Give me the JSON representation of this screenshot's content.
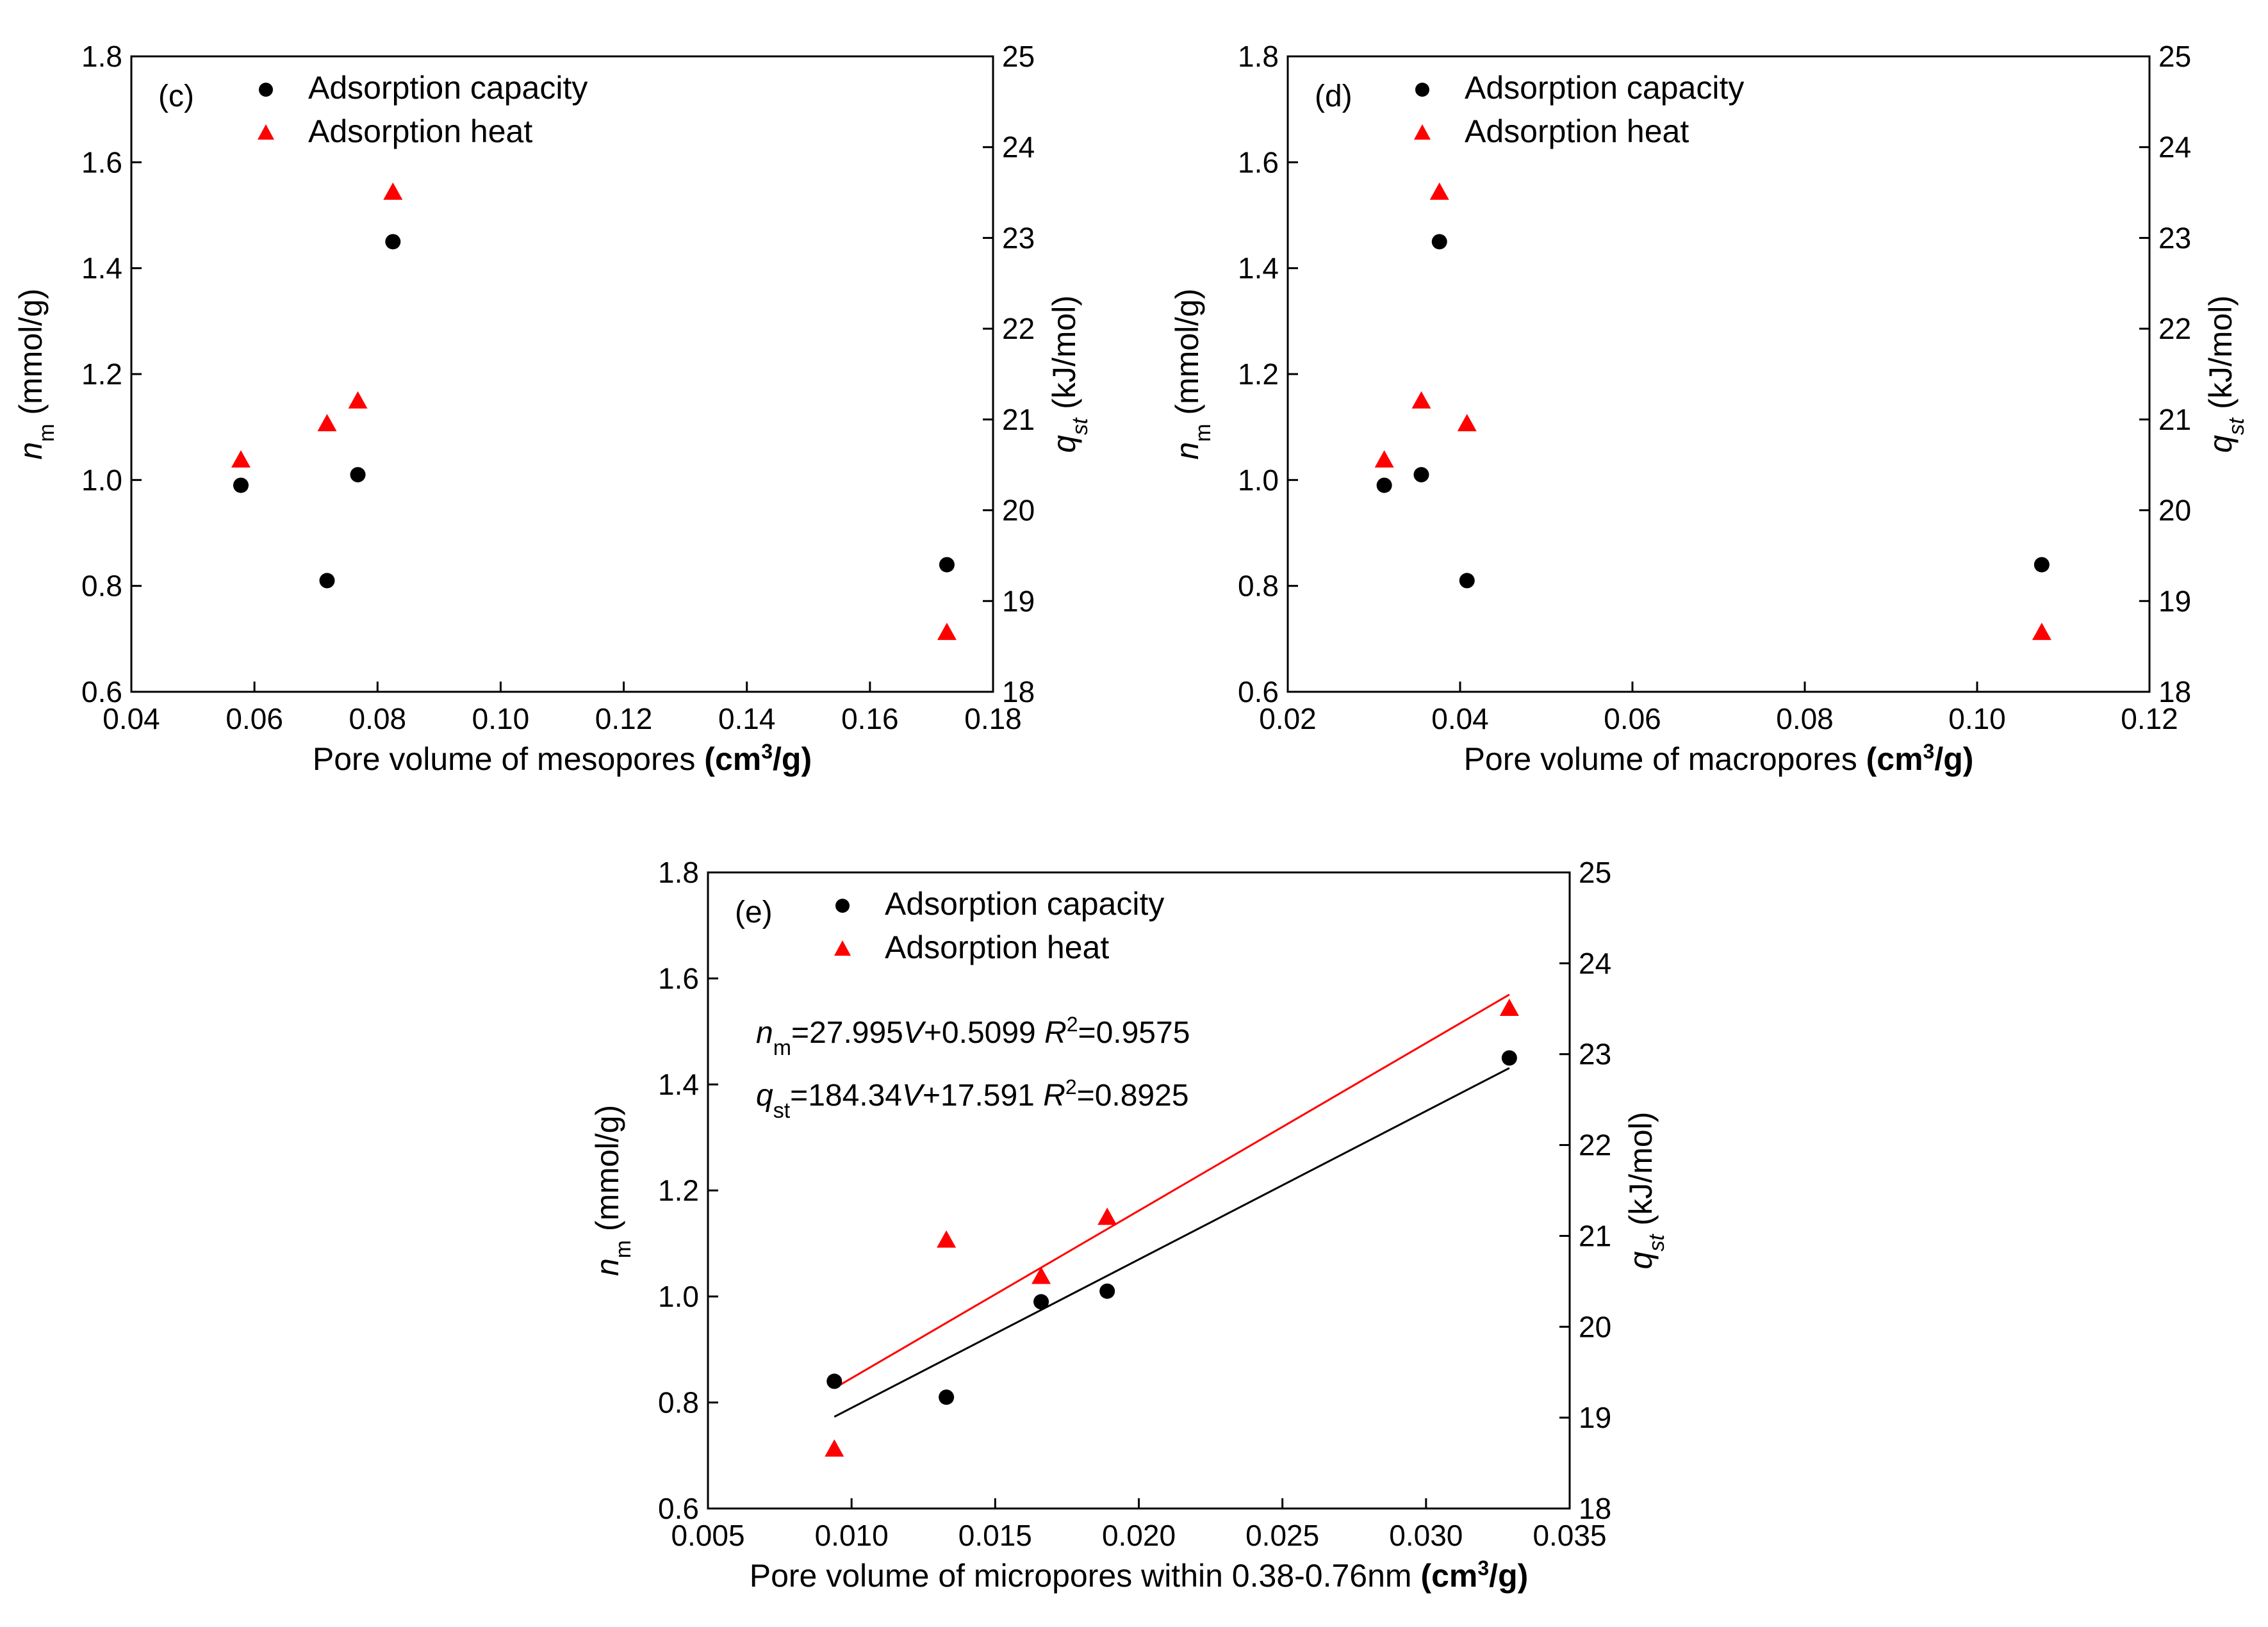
{
  "chart_data": [
    {
      "type": "scatter",
      "panel_label": "(c)",
      "xlabel": "Pore volume of mesopores",
      "xlabel_unit": {
        "pre": "(cm",
        "sup": "3",
        "post": "/g)"
      },
      "ylabel_left": {
        "main": "n",
        "sub": "m",
        "rest": " (mmol/g)"
      },
      "ylabel_right": {
        "main": "q",
        "sub": "st",
        "rest": " (kJ/mol)"
      },
      "xlim": [
        0.04,
        0.18
      ],
      "xticks": [
        0.04,
        0.06,
        0.08,
        0.1,
        0.12,
        0.14,
        0.16,
        0.18
      ],
      "xtick_labels": [
        "0.04",
        "0.06",
        "0.08",
        "0.10",
        "0.12",
        "0.14",
        "0.16",
        "0.18"
      ],
      "ylim_left": [
        0.6,
        1.8
      ],
      "yticks_left": [
        0.6,
        0.8,
        1.0,
        1.2,
        1.4,
        1.6,
        1.8
      ],
      "ytick_labels_left": [
        "0.6",
        "0.8",
        "1.0",
        "1.2",
        "1.4",
        "1.6",
        "1.8"
      ],
      "ylim_right": [
        18,
        25
      ],
      "yticks_right": [
        18,
        19,
        20,
        21,
        22,
        23,
        24,
        25
      ],
      "ytick_labels_right": [
        "18",
        "19",
        "20",
        "21",
        "22",
        "23",
        "24",
        "25"
      ],
      "legend": [
        "Adsorption capacity",
        "Adsorption heat"
      ],
      "series": [
        {
          "name": "Adsorption capacity",
          "axis": "left",
          "marker": "circle",
          "color": "#000000",
          "x": [
            0.0578,
            0.0718,
            0.0768,
            0.0825,
            0.1725
          ],
          "y": [
            0.99,
            0.81,
            1.01,
            1.45,
            0.84
          ]
        },
        {
          "name": "Adsorption heat",
          "axis": "right",
          "marker": "triangle",
          "color": "#ff0000",
          "x": [
            0.0578,
            0.0718,
            0.0768,
            0.0825,
            0.1725
          ],
          "y": [
            20.55,
            20.95,
            21.2,
            23.5,
            18.65
          ]
        }
      ]
    },
    {
      "type": "scatter",
      "panel_label": "(d)",
      "xlabel": "Pore volume of macropores",
      "xlabel_unit": {
        "pre": "(cm",
        "sup": "3",
        "post": "/g)"
      },
      "ylabel_left": {
        "main": "n",
        "sub": "m",
        "rest": " (mmol/g)"
      },
      "ylabel_right": {
        "main": "q",
        "sub": "st",
        "rest": " (kJ/mol)"
      },
      "xlim": [
        0.02,
        0.12
      ],
      "xticks": [
        0.02,
        0.04,
        0.06,
        0.08,
        0.1,
        0.12
      ],
      "xtick_labels": [
        "0.02",
        "0.04",
        "0.06",
        "0.08",
        "0.10",
        "0.12"
      ],
      "ylim_left": [
        0.6,
        1.8
      ],
      "yticks_left": [
        0.6,
        0.8,
        1.0,
        1.2,
        1.4,
        1.6,
        1.8
      ],
      "ytick_labels_left": [
        "0.6",
        "0.8",
        "1.0",
        "1.2",
        "1.4",
        "1.6",
        "1.8"
      ],
      "ylim_right": [
        18,
        25
      ],
      "yticks_right": [
        18,
        19,
        20,
        21,
        22,
        23,
        24,
        25
      ],
      "ytick_labels_right": [
        "18",
        "19",
        "20",
        "21",
        "22",
        "23",
        "24",
        "25"
      ],
      "legend": [
        "Adsorption capacity",
        "Adsorption heat"
      ],
      "series": [
        {
          "name": "Adsorption capacity",
          "axis": "left",
          "marker": "circle",
          "color": "#000000",
          "x": [
            0.0312,
            0.0355,
            0.0376,
            0.0408,
            0.1075
          ],
          "y": [
            0.99,
            1.01,
            1.45,
            0.81,
            0.84
          ]
        },
        {
          "name": "Adsorption heat",
          "axis": "right",
          "marker": "triangle",
          "color": "#ff0000",
          "x": [
            0.0312,
            0.0355,
            0.0376,
            0.0408,
            0.1075
          ],
          "y": [
            20.55,
            21.2,
            23.5,
            20.95,
            18.65
          ]
        }
      ]
    },
    {
      "type": "scatter",
      "panel_label": "(e)",
      "xlabel": "Pore volume of micropores within 0.38-0.76nm",
      "xlabel_unit": {
        "pre": "(cm",
        "sup": "3",
        "post": "/g)"
      },
      "ylabel_left": {
        "main": "n",
        "sub": "m",
        "rest": " (mmol/g)"
      },
      "ylabel_right": {
        "main": "q",
        "sub": "st",
        "rest": " (kJ/mol)"
      },
      "xlim": [
        0.005,
        0.035
      ],
      "xticks": [
        0.005,
        0.01,
        0.015,
        0.02,
        0.025,
        0.03,
        0.035
      ],
      "xtick_labels": [
        "0.005",
        "0.010",
        "0.015",
        "0.020",
        "0.025",
        "0.030",
        "0.035"
      ],
      "ylim_left": [
        0.6,
        1.8
      ],
      "yticks_left": [
        0.6,
        0.8,
        1.0,
        1.2,
        1.4,
        1.6,
        1.8
      ],
      "ytick_labels_left": [
        "0.6",
        "0.8",
        "1.0",
        "1.2",
        "1.4",
        "1.6",
        "1.8"
      ],
      "ylim_right": [
        18,
        25
      ],
      "yticks_right": [
        18,
        19,
        20,
        21,
        22,
        23,
        24,
        25
      ],
      "ytick_labels_right": [
        "18",
        "19",
        "20",
        "21",
        "22",
        "23",
        "24",
        "25"
      ],
      "legend": [
        "Adsorption capacity",
        "Adsorption heat"
      ],
      "series": [
        {
          "name": "Adsorption capacity",
          "axis": "left",
          "marker": "circle",
          "color": "#000000",
          "x": [
            0.0094,
            0.0133,
            0.0166,
            0.0189,
            0.0329
          ],
          "y": [
            0.84,
            0.81,
            0.99,
            1.01,
            1.45
          ]
        },
        {
          "name": "Adsorption heat",
          "axis": "right",
          "marker": "triangle",
          "color": "#ff0000",
          "x": [
            0.0094,
            0.0133,
            0.0166,
            0.0189,
            0.0329
          ],
          "y": [
            18.65,
            20.95,
            20.55,
            21.2,
            23.5
          ]
        }
      ],
      "fits": [
        {
          "name": "n_m fit",
          "axis": "left",
          "color": "#000000",
          "slope": 27.995,
          "intercept": 0.5099,
          "x_range": [
            0.0094,
            0.0329
          ]
        },
        {
          "name": "q_st fit",
          "axis": "right",
          "color": "#ff0000",
          "slope": 184.34,
          "intercept": 17.591,
          "x_range": [
            0.0094,
            0.0329
          ]
        }
      ],
      "equations": [
        {
          "lhs_main": "n",
          "lhs_sub": "m",
          "rhs_a": "=27.995",
          "var": "V",
          "rhs_b": "+0.5099",
          "r_main": "R",
          "r_sup": "2",
          "r_value": "=0.9575"
        },
        {
          "lhs_main": "q",
          "lhs_sub": "st",
          "rhs_a": "=184.34",
          "var": "V",
          "rhs_b": "+17.591",
          "r_main": "R",
          "r_sup": "2",
          "r_value": "=0.8925"
        }
      ]
    }
  ]
}
